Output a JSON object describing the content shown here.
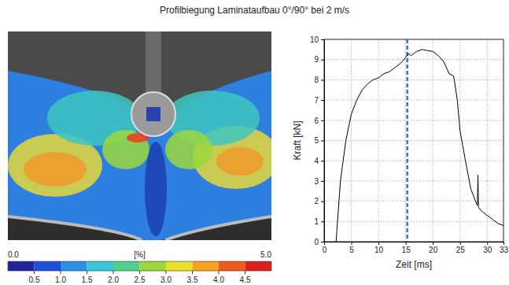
{
  "title": "Profilbiegung Laminataufbau 0°/90° bei 2 m/s",
  "chart_data": [
    {
      "type": "image",
      "colorbar_lim": [
        0,
        5
      ],
      "colorbar_lim_labels": [
        "0.0",
        "5.0"
      ],
      "colorbar_unit": "[%]",
      "colorbar_ticks": [
        0.5,
        {
          "value": 1,
          "label": "1.0"
        },
        1.5,
        {
          "value": 2,
          "label": "2.0"
        },
        2.5,
        {
          "value": 3,
          "label": "3.0"
        },
        3.5,
        {
          "value": 4,
          "label": "4.0"
        },
        4.5
      ]
    },
    {
      "type": "line",
      "x_label": "Zeit [ms]",
      "y_label": "Kraft [kN]",
      "x": [
        2.2,
        3,
        4,
        5,
        6,
        7,
        8,
        9,
        10,
        11,
        12,
        13,
        14,
        15,
        15.5,
        16,
        17,
        18,
        19,
        20,
        21,
        22,
        23,
        23.8,
        24,
        24.5,
        25,
        26,
        27,
        28,
        28.2,
        28.3,
        28.4,
        29,
        30,
        31,
        32,
        33
      ],
      "values": [
        0,
        3,
        5,
        6.3,
        7,
        7.5,
        7.8,
        8,
        8.1,
        8.3,
        8.4,
        8.6,
        8.8,
        9.1,
        9.3,
        9.2,
        9.4,
        9.5,
        9.45,
        9.4,
        9.2,
        8.9,
        8.3,
        8.2,
        7.9,
        7,
        5.5,
        4,
        2.6,
        1.9,
        1.8,
        3.3,
        1.7,
        1.5,
        1.3,
        1.1,
        0.9,
        0.8
      ],
      "color": "#000000",
      "xlim": [
        0,
        33
      ],
      "ylim": [
        0,
        10
      ],
      "xticks": [
        0,
        5,
        10,
        15,
        20,
        25,
        30,
        33
      ],
      "yticks": [
        0,
        1,
        2,
        3,
        4,
        5,
        6,
        7,
        8,
        9,
        10
      ],
      "grid": true,
      "annotations": [
        {
          "x": 15.3,
          "line_style": "dashed",
          "color": "#4472c4"
        }
      ]
    }
  ]
}
